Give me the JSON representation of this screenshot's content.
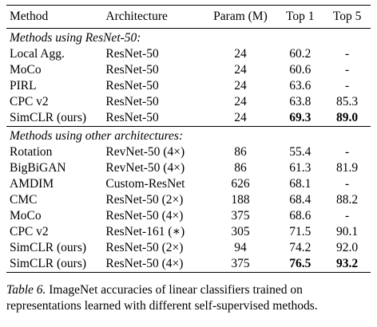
{
  "table": {
    "headers": {
      "method": "Method",
      "architecture": "Architecture",
      "param": "Param (M)",
      "top1": "Top 1",
      "top5": "Top 5"
    },
    "sections": [
      {
        "title": "Methods using ResNet-50:",
        "rows": [
          {
            "method": "Local Agg.",
            "architecture": "ResNet-50",
            "param": "24",
            "top1": "60.2",
            "top5": "-"
          },
          {
            "method": "MoCo",
            "architecture": "ResNet-50",
            "param": "24",
            "top1": "60.6",
            "top5": "-"
          },
          {
            "method": "PIRL",
            "architecture": "ResNet-50",
            "param": "24",
            "top1": "63.6",
            "top5": "-"
          },
          {
            "method": "CPC v2",
            "architecture": "ResNet-50",
            "param": "24",
            "top1": "63.8",
            "top5": "85.3"
          },
          {
            "method": "SimCLR (ours)",
            "architecture": "ResNet-50",
            "param": "24",
            "top1": "69.3",
            "top5": "89.0"
          }
        ]
      },
      {
        "title": "Methods using other architectures:",
        "rows": [
          {
            "method": "Rotation",
            "architecture": "RevNet-50 (4×)",
            "param": "86",
            "top1": "55.4",
            "top5": "-"
          },
          {
            "method": "BigBiGAN",
            "architecture": "RevNet-50 (4×)",
            "param": "86",
            "top1": "61.3",
            "top5": "81.9"
          },
          {
            "method": "AMDIM",
            "architecture": "Custom-ResNet",
            "param": "626",
            "top1": "68.1",
            "top5": "-"
          },
          {
            "method": "CMC",
            "architecture": "ResNet-50 (2×)",
            "param": "188",
            "top1": "68.4",
            "top5": "88.2"
          },
          {
            "method": "MoCo",
            "architecture": "ResNet-50 (4×)",
            "param": "375",
            "top1": "68.6",
            "top5": "-"
          },
          {
            "method": "CPC v2",
            "architecture": "ResNet-161 (∗)",
            "param": "305",
            "top1": "71.5",
            "top5": "90.1"
          },
          {
            "method": "SimCLR (ours)",
            "architecture": "ResNet-50 (2×)",
            "param": "94",
            "top1": "74.2",
            "top5": "92.0"
          },
          {
            "method": "SimCLR (ours)",
            "architecture": "ResNet-50 (4×)",
            "param": "375",
            "top1": "76.5",
            "top5": "93.2"
          }
        ]
      }
    ]
  },
  "caption": {
    "label": "Table 6.",
    "text": "ImageNet accuracies of linear classifiers trained on representations learned with different self-supervised methods."
  }
}
